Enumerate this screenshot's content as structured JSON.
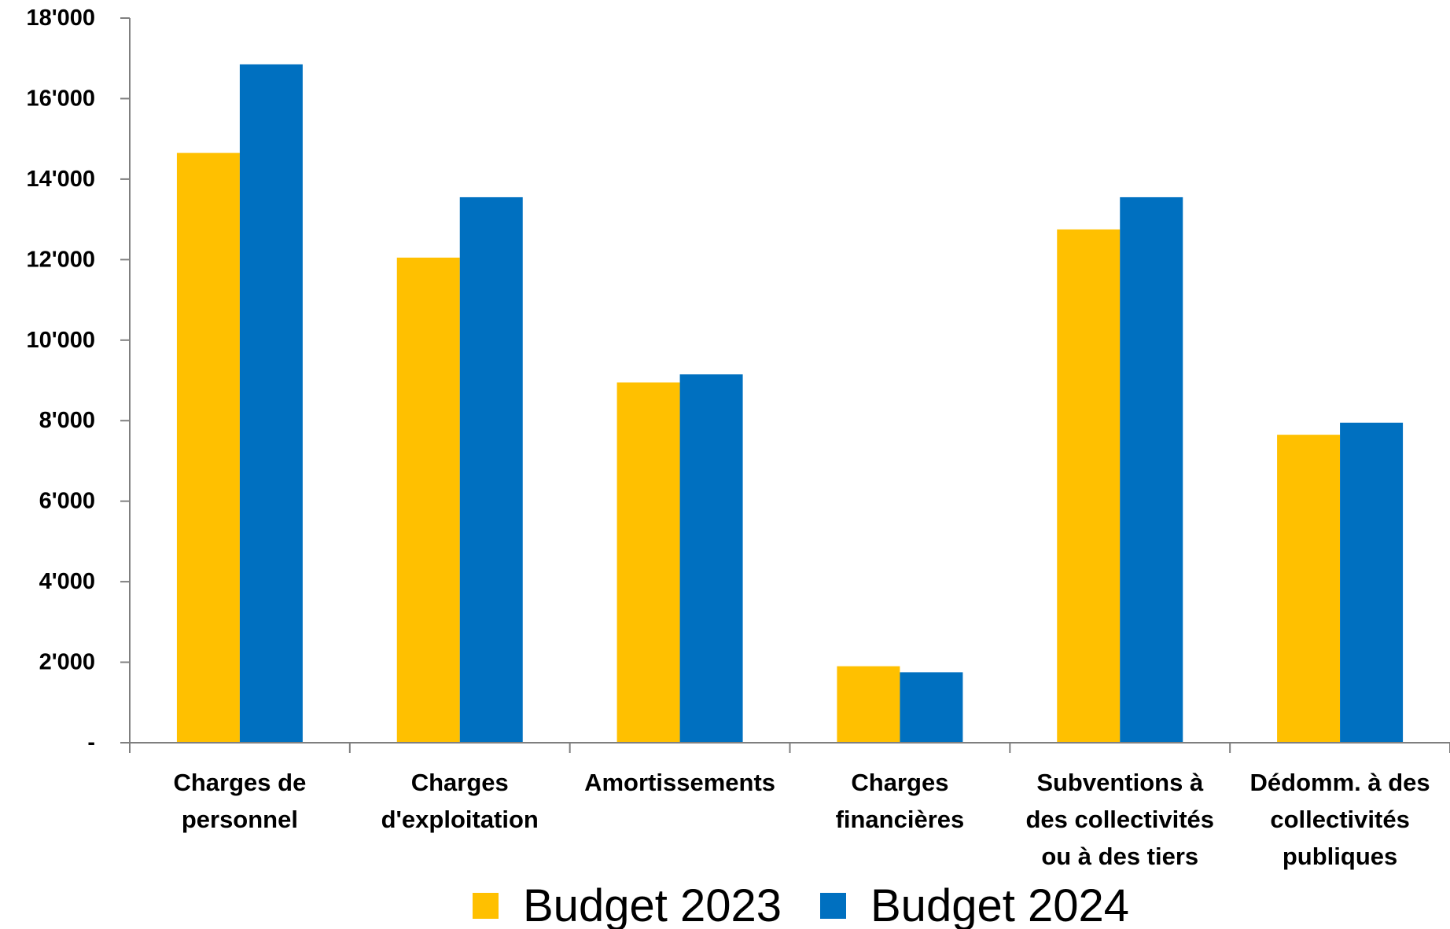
{
  "chart_data": {
    "type": "bar",
    "title": "",
    "xlabel": "",
    "ylabel": "",
    "ylim": [
      0,
      18000
    ],
    "y_ticks": [
      {
        "value": 0,
        "label": "-"
      },
      {
        "value": 2000,
        "label": "2'000"
      },
      {
        "value": 4000,
        "label": "4'000"
      },
      {
        "value": 6000,
        "label": "6'000"
      },
      {
        "value": 8000,
        "label": "8'000"
      },
      {
        "value": 10000,
        "label": "10'000"
      },
      {
        "value": 12000,
        "label": "12'000"
      },
      {
        "value": 14000,
        "label": "14'000"
      },
      {
        "value": 16000,
        "label": "16'000"
      },
      {
        "value": 18000,
        "label": "18'000"
      }
    ],
    "categories": [
      [
        "Charges de",
        "personnel"
      ],
      [
        "Charges",
        "d'exploitation"
      ],
      [
        "Amortissements"
      ],
      [
        "Charges",
        "financières"
      ],
      [
        "Subventions à",
        "des collectivités",
        "ou à des tiers"
      ],
      [
        "Dédomm. à des",
        "collectivités",
        "publiques"
      ]
    ],
    "series": [
      {
        "name": "Budget 2023",
        "color": "#FFC000",
        "values": [
          14650,
          12050,
          8950,
          1900,
          12750,
          7650
        ]
      },
      {
        "name": "Budget 2024",
        "color": "#0070C0",
        "values": [
          16850,
          13550,
          9150,
          1750,
          13550,
          7950
        ]
      }
    ],
    "grid": false,
    "legend": "bottom"
  }
}
